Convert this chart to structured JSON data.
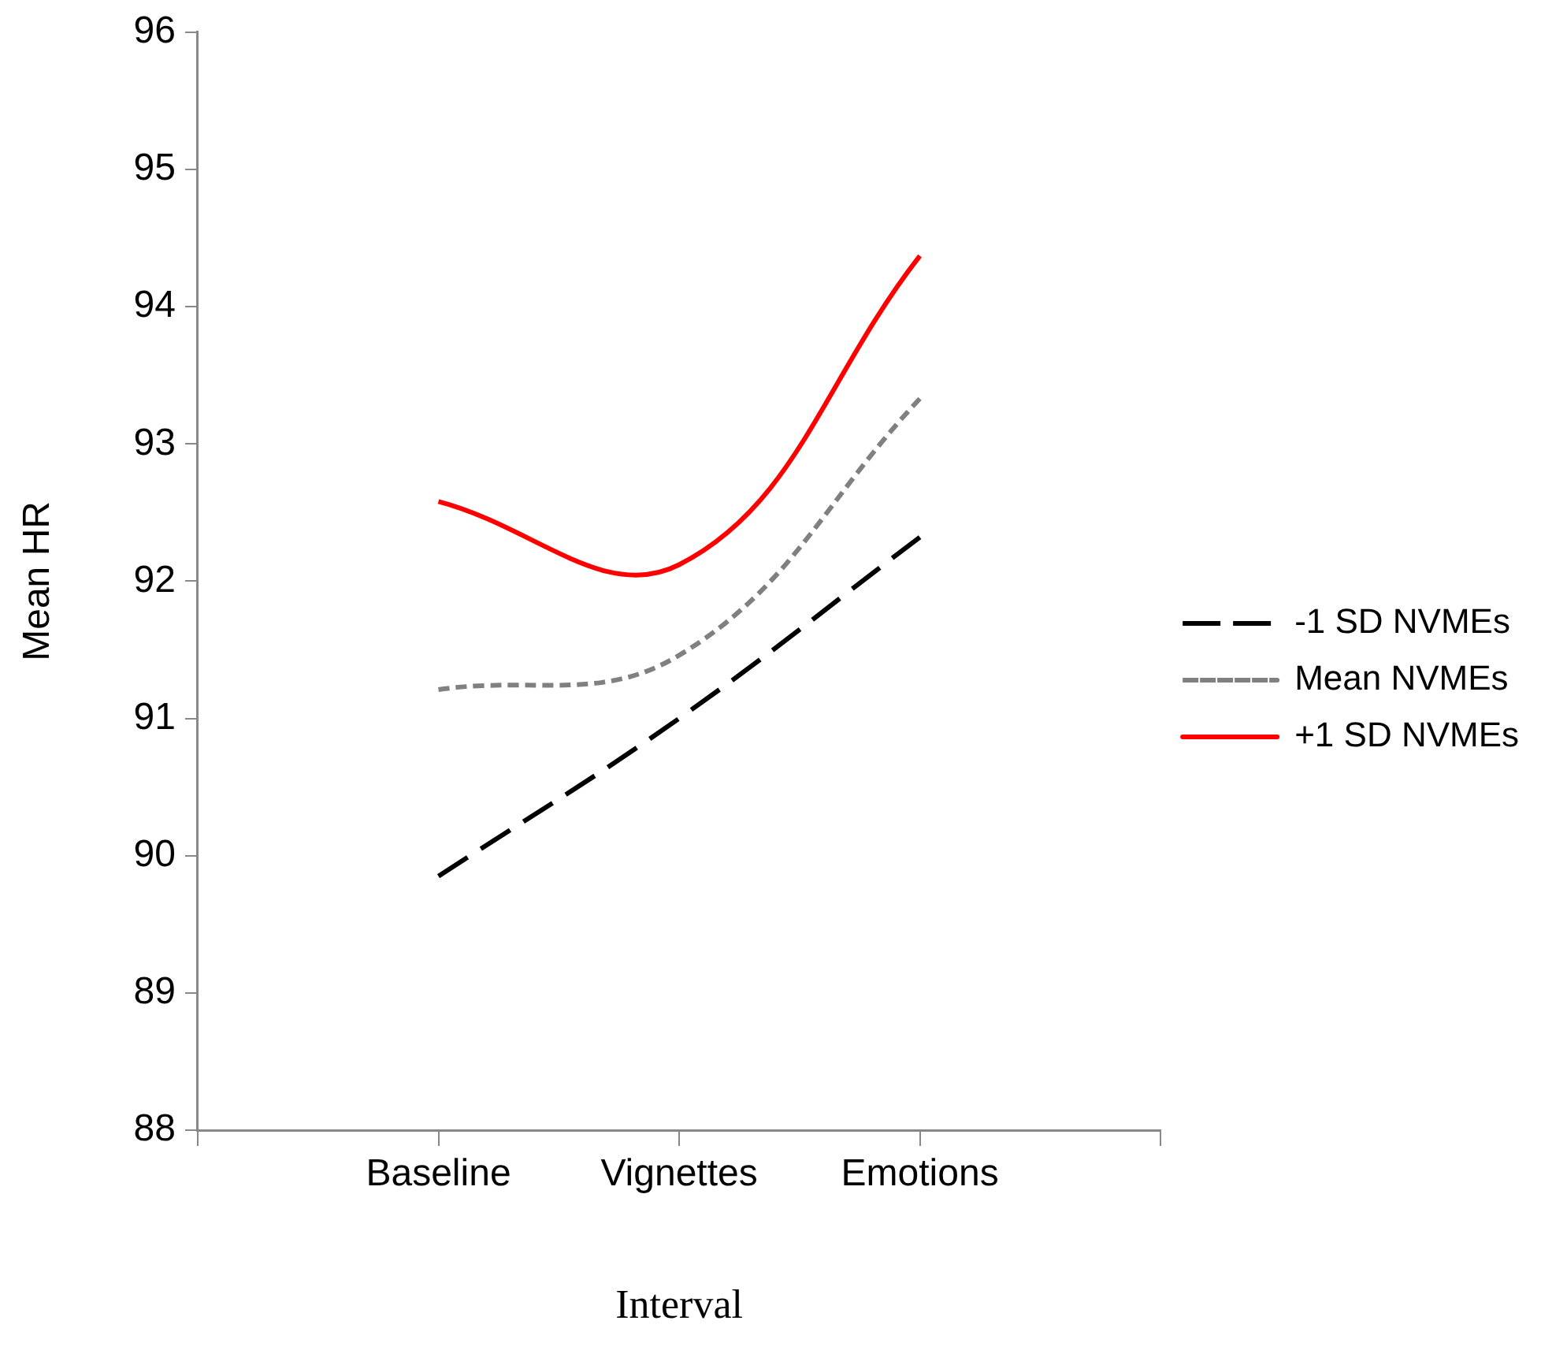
{
  "chart_data": {
    "type": "line",
    "xlabel": "Interval",
    "ylabel": "Mean HR",
    "categories": [
      null,
      "Baseline",
      "Vignettes",
      "Emotions",
      null
    ],
    "series": [
      {
        "name": "-1 SD NVMEs",
        "color": "#000000",
        "line_style": "dashed",
        "values": [
          null,
          89.85,
          91.0,
          92.32,
          null
        ]
      },
      {
        "name": "Mean NVMEs",
        "color": "#808080",
        "line_style": "dotted",
        "values": [
          null,
          91.21,
          91.46,
          93.33,
          null
        ]
      },
      {
        "name": "+1 SD NVMEs",
        "color": "#ff0000",
        "line_style": "solid",
        "values": [
          null,
          92.58,
          92.12,
          94.37,
          null
        ]
      }
    ],
    "ylim": [
      88,
      96
    ],
    "yticks": [
      88,
      89,
      90,
      91,
      92,
      93,
      94,
      95,
      96
    ],
    "grid": false,
    "legend": "right",
    "marker": "none"
  }
}
